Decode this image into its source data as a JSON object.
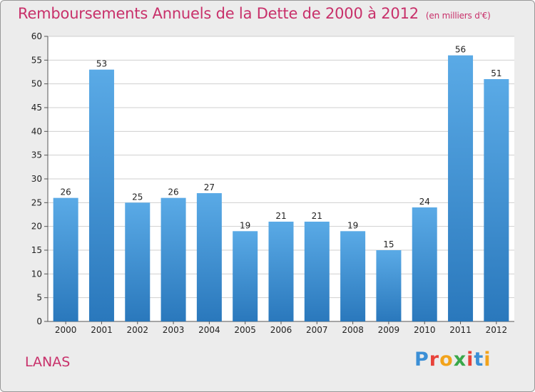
{
  "header": {
    "title": "Remboursements Annuels de la Dette de 2000 à 2012",
    "subtitle": "(en milliers d'€)"
  },
  "footer": {
    "commune": "LANAS",
    "logo": "Proxiti"
  },
  "colors": {
    "bar_top": "#5aaae6",
    "bar_bottom": "#2a78bc",
    "title": "#c8306a",
    "grid": "#cfcfcf",
    "plot_bg": "#ffffff",
    "logo_letters": [
      "#3b8fd6",
      "#e8423a",
      "#f2a31c",
      "#3aa84a",
      "#e8423a",
      "#3b8fd6",
      "#f2a31c"
    ]
  },
  "chart_data": {
    "type": "bar",
    "title": "Remboursements Annuels de la Dette de 2000 à 2012",
    "subtitle": "(en milliers d'€)",
    "xlabel": "",
    "ylabel": "",
    "categories": [
      "2000",
      "2001",
      "2002",
      "2003",
      "2004",
      "2005",
      "2006",
      "2007",
      "2008",
      "2009",
      "2010",
      "2011",
      "2012"
    ],
    "values": [
      26,
      53,
      25,
      26,
      27,
      19,
      21,
      21,
      19,
      15,
      24,
      56,
      51
    ],
    "ylim": [
      0,
      60
    ],
    "yticks": [
      0,
      5,
      10,
      15,
      20,
      25,
      30,
      35,
      40,
      45,
      50,
      55,
      60
    ],
    "grid": true,
    "legend": "none"
  }
}
